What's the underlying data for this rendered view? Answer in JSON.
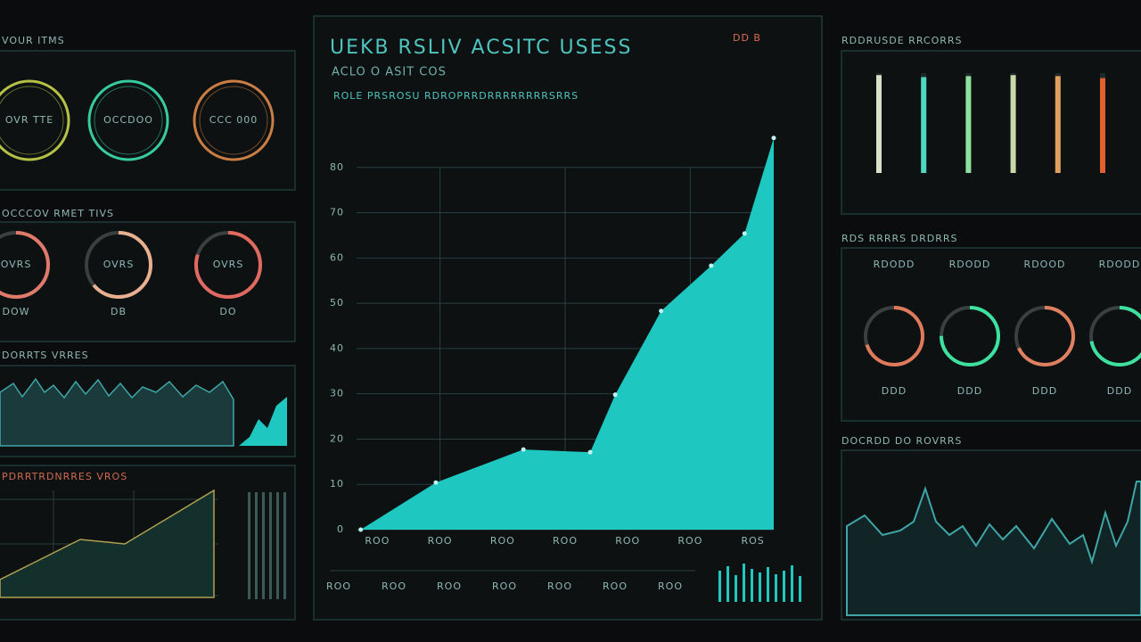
{
  "header_left": "VOUR ITMS",
  "gauges": {
    "items": [
      {
        "label": "OVR TTE",
        "color": "#c9d64b"
      },
      {
        "label": "OCCDOO",
        "color": "#3de0b0"
      },
      {
        "label": "CCC 000",
        "color": "#e08a4a"
      }
    ]
  },
  "dials": {
    "title": "OCCCOV RMET TIVS",
    "items": [
      {
        "label": "OVRS",
        "caption": "DOW",
        "value": 72,
        "color": "#e07a6a"
      },
      {
        "label": "OVRS",
        "caption": "DB",
        "value": 64,
        "color": "#e8b090"
      },
      {
        "label": "OVRS",
        "caption": "DO",
        "value": 80,
        "color": "#e06a60"
      }
    ]
  },
  "trend": {
    "title": "DORRTS VRRES"
  },
  "growth": {
    "title": "PDRRTRDNRRES VROS"
  },
  "main_chart": {
    "type": "area",
    "title": "UEKB RSLIV ACSITC USESS",
    "subtitle": "ACLO O ASIT COS",
    "caption": "ROLE PRSROSU RDROPRRDRRRRRRRRSRRS",
    "badge": "DD B",
    "color": "#1ec8c0",
    "x": [
      1,
      19,
      40,
      56,
      62,
      73,
      85,
      93,
      100
    ],
    "values": [
      0,
      10.4,
      17.7,
      17.1,
      29.8,
      48.3,
      58.3,
      65.4,
      86.5
    ],
    "xlim": [
      0,
      100
    ],
    "ylim": [
      0,
      90
    ],
    "xticks": [
      {
        "value": 5,
        "label": "ROO"
      },
      {
        "value": 20,
        "label": "ROO"
      },
      {
        "value": 35,
        "label": "ROO"
      },
      {
        "value": 50,
        "label": "ROO"
      },
      {
        "value": 65,
        "label": "ROO"
      },
      {
        "value": 80,
        "label": "ROO"
      },
      {
        "value": 95,
        "label": "ROS"
      }
    ],
    "yticks": [
      0,
      10,
      20,
      30,
      40,
      50,
      60,
      70,
      80
    ],
    "footer_labels": [
      "ROO",
      "ROO",
      "ROO",
      "ROO",
      "ROO",
      "ROO",
      "ROO"
    ]
  },
  "bars": {
    "title": "RDDRUSDE RRCORRS",
    "values": [
      98,
      96,
      97,
      98,
      97,
      95
    ],
    "colors": [
      "#d9e0c8",
      "#4fd8c0",
      "#8ee0a0",
      "#c8d8a8",
      "#e0a060",
      "#e06030"
    ],
    "ylim": [
      0,
      100
    ]
  },
  "rings": {
    "title": "RDS RRRRS DRDRRS",
    "items": [
      {
        "label": "RDODD",
        "caption": "DDD",
        "value": 70,
        "color": "#e07a5a"
      },
      {
        "label": "RDODD",
        "caption": "DDD",
        "value": 75,
        "color": "#3ee0a0"
      },
      {
        "label": "RDOOD",
        "caption": "DDD",
        "value": 68,
        "color": "#e08060"
      },
      {
        "label": "RDODD",
        "caption": "DDD",
        "value": 72,
        "color": "#3ee0a0"
      }
    ]
  },
  "wave": {
    "title": "DOCRDD DO ROVRRS"
  }
}
